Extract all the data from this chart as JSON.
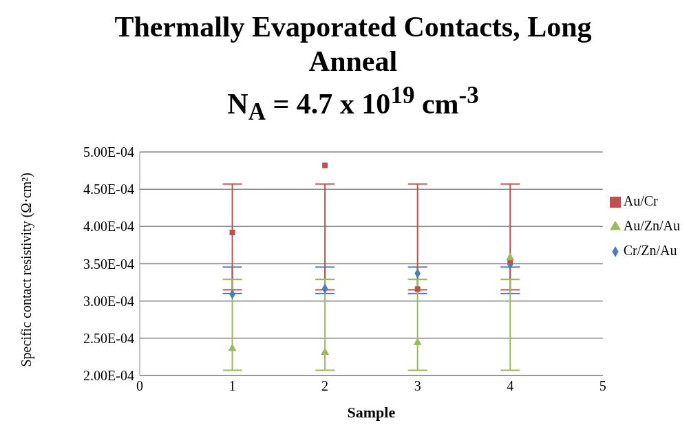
{
  "chart_data": {
    "type": "scatter",
    "title": "Thermally Evaporated Contacts, Long Anneal",
    "subtitle": "N$_{A}$ = 4.7 x 10$^{19}$ cm$^{-3}$",
    "xlabel": "Sample",
    "ylabel": "Specific contact resistivity (Ω·cm²)",
    "x": [
      1,
      2,
      3,
      4
    ],
    "series": [
      {
        "name": "Cr/Zn/Au",
        "color": "#4a7ebb",
        "marker": "diamond",
        "values": [
          0.000309,
          0.0003165,
          0.000337,
          0.000349
        ],
        "errors": [
          [
            0.00031,
            0.0003455
          ],
          [
            0.00031,
            0.0003455
          ],
          [
            0.00031,
            0.0003455
          ],
          [
            0.00031,
            0.0003455
          ]
        ]
      },
      {
        "name": "Au/Cr",
        "color": "#c0504d",
        "marker": "square",
        "values": [
          0.000392,
          0.000482,
          0.000316,
          0.000354
        ],
        "errors": [
          [
            0.000315,
            0.000457
          ],
          [
            0.000315,
            0.000457
          ],
          [
            0.000315,
            0.000457
          ],
          [
            0.000315,
            0.000457
          ]
        ]
      },
      {
        "name": "Au/Zn/Au",
        "color": "#9bbb59",
        "marker": "triangle",
        "values": [
          0.000236,
          0.000231,
          0.000244,
          0.000358
        ],
        "errors": [
          [
            0.000207,
            0.000329
          ],
          [
            0.000207,
            0.000329
          ],
          [
            0.000207,
            0.000329
          ],
          [
            0.000207,
            0.000329
          ]
        ]
      }
    ],
    "xlim": [
      0,
      5
    ],
    "xticks": [
      0,
      1,
      2,
      3,
      4,
      5
    ],
    "ylim": [
      0.0002,
      0.0005
    ],
    "yticks": [
      {
        "value": 0.0002,
        "label": "2.00E-04"
      },
      {
        "value": 0.00025,
        "label": "2.50E-04"
      },
      {
        "value": 0.0003,
        "label": "3.00E-04"
      },
      {
        "value": 0.00035,
        "label": "3.50E-04"
      },
      {
        "value": 0.0004,
        "label": "4.00E-04"
      },
      {
        "value": 0.00045,
        "label": "4.50E-04"
      },
      {
        "value": 0.0005,
        "label": "5.00E-04"
      }
    ],
    "grid": "y",
    "legend": "right"
  }
}
